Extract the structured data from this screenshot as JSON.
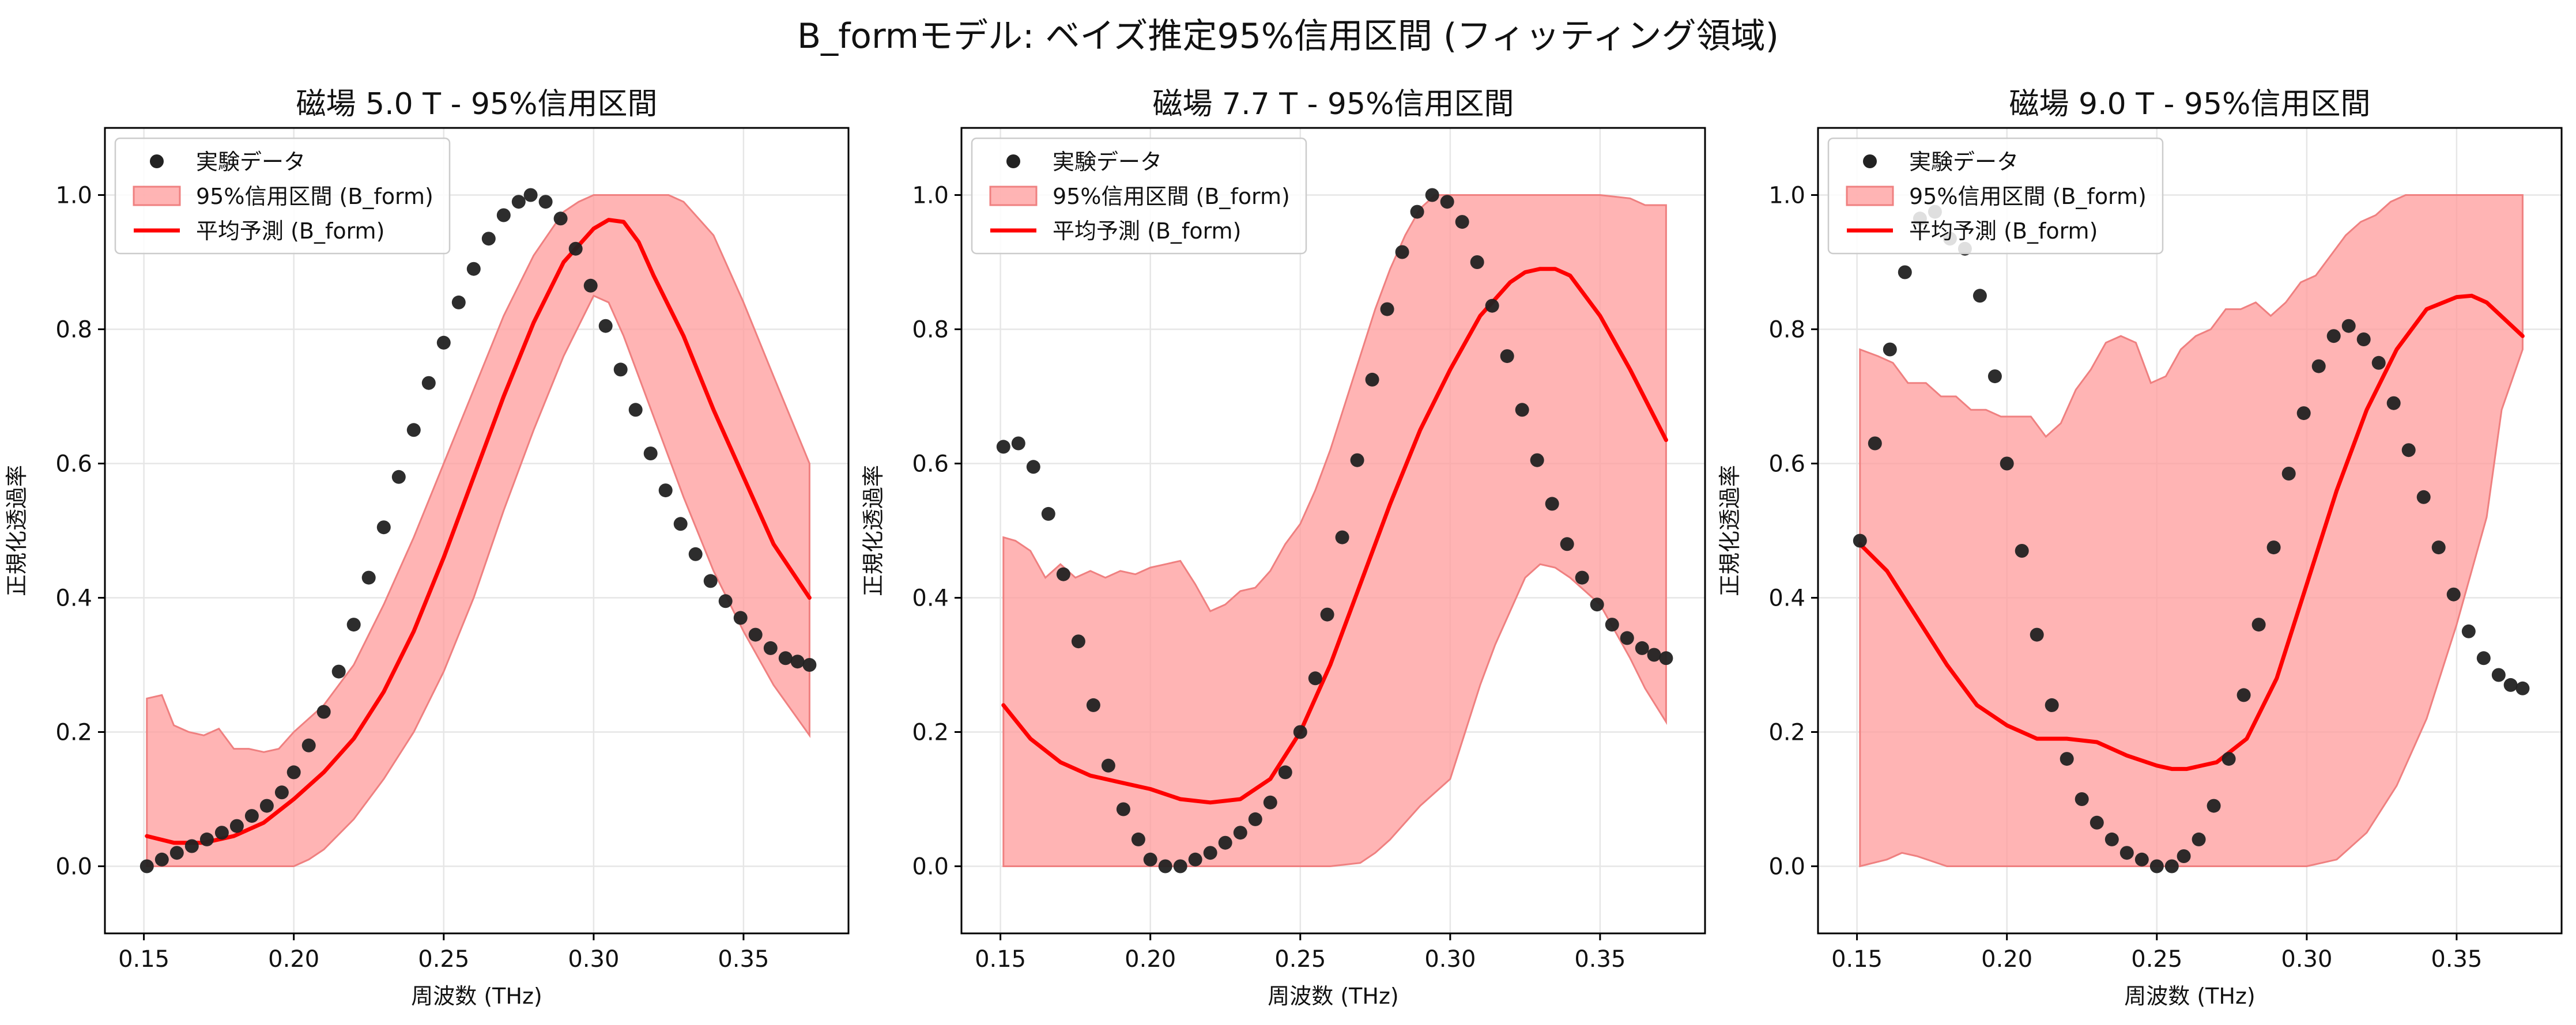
{
  "figure": {
    "suptitle": "B_formモデル: ベイズ推定95%信用区間 (フィッティング領域)"
  },
  "colors": {
    "band_fill": "#ff9b9b",
    "band_edge": "#ef8080",
    "mean_line": "#ff0000",
    "data_points": "#222222",
    "grid": "#e6e6e6"
  },
  "chart_data": [
    {
      "type": "line",
      "title": "磁場 5.0 T - 95%信用区間",
      "xlabel": "周波数 (THz)",
      "ylabel": "正規化透過率",
      "xlim": [
        0.137,
        0.385
      ],
      "ylim": [
        -0.1,
        1.1
      ],
      "xticks": [
        "0.15",
        "0.20",
        "0.25",
        "0.30",
        "0.35"
      ],
      "yticks": [
        "0.0",
        "0.2",
        "0.4",
        "0.6",
        "0.8",
        "1.0"
      ],
      "grid": true,
      "legend": {
        "position": "top-left",
        "entries": [
          "実験データ",
          "95%信用区間 (B_form)",
          "平均予測 (B_form)"
        ]
      },
      "experimental": {
        "x": [
          0.151,
          0.156,
          0.161,
          0.166,
          0.171,
          0.176,
          0.181,
          0.186,
          0.191,
          0.196,
          0.2,
          0.205,
          0.21,
          0.215,
          0.22,
          0.225,
          0.23,
          0.235,
          0.24,
          0.245,
          0.25,
          0.255,
          0.26,
          0.265,
          0.27,
          0.275,
          0.279,
          0.284,
          0.289,
          0.294,
          0.299,
          0.304,
          0.309,
          0.314,
          0.319,
          0.324,
          0.329,
          0.334,
          0.339,
          0.344,
          0.349,
          0.354,
          0.359,
          0.364,
          0.368,
          0.372
        ],
        "y": [
          0.0,
          0.01,
          0.02,
          0.03,
          0.04,
          0.05,
          0.06,
          0.075,
          0.09,
          0.11,
          0.14,
          0.18,
          0.23,
          0.29,
          0.36,
          0.43,
          0.505,
          0.58,
          0.65,
          0.72,
          0.78,
          0.84,
          0.89,
          0.935,
          0.97,
          0.99,
          1.0,
          0.99,
          0.965,
          0.92,
          0.865,
          0.805,
          0.74,
          0.68,
          0.615,
          0.56,
          0.51,
          0.465,
          0.425,
          0.395,
          0.37,
          0.345,
          0.325,
          0.31,
          0.305,
          0.3
        ]
      },
      "mean": {
        "x": [
          0.151,
          0.16,
          0.17,
          0.18,
          0.19,
          0.2,
          0.21,
          0.22,
          0.23,
          0.24,
          0.25,
          0.26,
          0.27,
          0.28,
          0.29,
          0.3,
          0.305,
          0.31,
          0.315,
          0.32,
          0.33,
          0.34,
          0.35,
          0.36,
          0.372
        ],
        "y": [
          0.045,
          0.035,
          0.035,
          0.045,
          0.065,
          0.1,
          0.14,
          0.19,
          0.26,
          0.35,
          0.46,
          0.58,
          0.7,
          0.81,
          0.9,
          0.95,
          0.963,
          0.96,
          0.93,
          0.88,
          0.79,
          0.68,
          0.58,
          0.48,
          0.4
        ]
      },
      "band_upper": {
        "x": [
          0.151,
          0.156,
          0.16,
          0.165,
          0.17,
          0.175,
          0.18,
          0.185,
          0.19,
          0.195,
          0.2,
          0.21,
          0.22,
          0.23,
          0.24,
          0.25,
          0.26,
          0.27,
          0.28,
          0.29,
          0.295,
          0.3,
          0.31,
          0.32,
          0.325,
          0.33,
          0.34,
          0.35,
          0.36,
          0.372
        ],
        "y": [
          0.25,
          0.255,
          0.21,
          0.2,
          0.195,
          0.205,
          0.175,
          0.175,
          0.17,
          0.175,
          0.2,
          0.24,
          0.3,
          0.39,
          0.49,
          0.6,
          0.71,
          0.82,
          0.91,
          0.975,
          0.99,
          1.0,
          1.0,
          1.0,
          1.0,
          0.99,
          0.94,
          0.84,
          0.73,
          0.6
        ]
      },
      "band_lower": {
        "x": [
          0.151,
          0.16,
          0.17,
          0.18,
          0.19,
          0.2,
          0.205,
          0.21,
          0.22,
          0.23,
          0.24,
          0.25,
          0.26,
          0.27,
          0.28,
          0.29,
          0.3,
          0.305,
          0.31,
          0.32,
          0.33,
          0.34,
          0.35,
          0.36,
          0.372
        ],
        "y": [
          0.0,
          0.0,
          0.0,
          0.0,
          0.0,
          0.0,
          0.01,
          0.025,
          0.07,
          0.13,
          0.2,
          0.29,
          0.4,
          0.53,
          0.65,
          0.76,
          0.85,
          0.84,
          0.79,
          0.67,
          0.55,
          0.44,
          0.35,
          0.27,
          0.195
        ]
      }
    },
    {
      "type": "line",
      "title": "磁場 7.7 T - 95%信用区間",
      "xlabel": "周波数 (THz)",
      "ylabel": "正規化透過率",
      "xlim": [
        0.137,
        0.385
      ],
      "ylim": [
        -0.1,
        1.1
      ],
      "xticks": [
        "0.15",
        "0.20",
        "0.25",
        "0.30",
        "0.35"
      ],
      "yticks": [
        "0.0",
        "0.2",
        "0.4",
        "0.6",
        "0.8",
        "1.0"
      ],
      "grid": true,
      "legend": {
        "position": "top-left",
        "entries": [
          "実験データ",
          "95%信用区間 (B_form)",
          "平均予測 (B_form)"
        ]
      },
      "experimental": {
        "x": [
          0.151,
          0.156,
          0.161,
          0.166,
          0.171,
          0.176,
          0.181,
          0.186,
          0.191,
          0.196,
          0.2,
          0.205,
          0.21,
          0.215,
          0.22,
          0.225,
          0.23,
          0.235,
          0.24,
          0.245,
          0.25,
          0.255,
          0.259,
          0.264,
          0.269,
          0.274,
          0.279,
          0.284,
          0.289,
          0.294,
          0.299,
          0.304,
          0.309,
          0.314,
          0.319,
          0.324,
          0.329,
          0.334,
          0.339,
          0.344,
          0.349,
          0.354,
          0.359,
          0.364,
          0.368,
          0.372
        ],
        "y": [
          0.625,
          0.63,
          0.595,
          0.525,
          0.435,
          0.335,
          0.24,
          0.15,
          0.085,
          0.04,
          0.01,
          0.0,
          0.0,
          0.01,
          0.02,
          0.035,
          0.05,
          0.07,
          0.095,
          0.14,
          0.2,
          0.28,
          0.375,
          0.49,
          0.605,
          0.725,
          0.83,
          0.915,
          0.975,
          1.0,
          0.99,
          0.96,
          0.9,
          0.835,
          0.76,
          0.68,
          0.605,
          0.54,
          0.48,
          0.43,
          0.39,
          0.36,
          0.34,
          0.325,
          0.315,
          0.31
        ]
      },
      "mean": {
        "x": [
          0.151,
          0.16,
          0.17,
          0.18,
          0.19,
          0.2,
          0.21,
          0.22,
          0.23,
          0.24,
          0.25,
          0.26,
          0.27,
          0.28,
          0.29,
          0.3,
          0.31,
          0.32,
          0.325,
          0.33,
          0.335,
          0.34,
          0.35,
          0.36,
          0.372
        ],
        "y": [
          0.24,
          0.19,
          0.155,
          0.135,
          0.125,
          0.115,
          0.1,
          0.095,
          0.1,
          0.13,
          0.2,
          0.3,
          0.42,
          0.54,
          0.65,
          0.74,
          0.82,
          0.87,
          0.885,
          0.89,
          0.89,
          0.88,
          0.82,
          0.74,
          0.635
        ]
      },
      "band_upper": {
        "x": [
          0.151,
          0.155,
          0.16,
          0.165,
          0.17,
          0.175,
          0.18,
          0.185,
          0.19,
          0.195,
          0.2,
          0.205,
          0.21,
          0.215,
          0.22,
          0.225,
          0.23,
          0.235,
          0.24,
          0.245,
          0.25,
          0.255,
          0.26,
          0.265,
          0.27,
          0.275,
          0.28,
          0.285,
          0.29,
          0.295,
          0.3,
          0.31,
          0.32,
          0.33,
          0.34,
          0.35,
          0.36,
          0.365,
          0.372
        ],
        "y": [
          0.49,
          0.485,
          0.47,
          0.43,
          0.45,
          0.43,
          0.44,
          0.43,
          0.44,
          0.435,
          0.445,
          0.45,
          0.455,
          0.42,
          0.38,
          0.39,
          0.41,
          0.415,
          0.44,
          0.48,
          0.51,
          0.56,
          0.62,
          0.69,
          0.76,
          0.83,
          0.89,
          0.94,
          0.98,
          1.0,
          1.0,
          1.0,
          1.0,
          1.0,
          1.0,
          1.0,
          0.995,
          0.985,
          0.985
        ]
      },
      "band_lower": {
        "x": [
          0.151,
          0.24,
          0.25,
          0.26,
          0.27,
          0.275,
          0.28,
          0.29,
          0.3,
          0.31,
          0.315,
          0.32,
          0.325,
          0.33,
          0.335,
          0.34,
          0.345,
          0.35,
          0.355,
          0.36,
          0.365,
          0.372
        ],
        "y": [
          0.0,
          0.0,
          0.0,
          0.0,
          0.005,
          0.02,
          0.04,
          0.09,
          0.13,
          0.27,
          0.33,
          0.38,
          0.43,
          0.45,
          0.445,
          0.43,
          0.41,
          0.39,
          0.35,
          0.31,
          0.265,
          0.215
        ]
      }
    },
    {
      "type": "line",
      "title": "磁場 9.0 T - 95%信用区間",
      "xlabel": "周波数 (THz)",
      "ylabel": "正規化透過率",
      "xlim": [
        0.137,
        0.385
      ],
      "ylim": [
        -0.1,
        1.1
      ],
      "xticks": [
        "0.15",
        "0.20",
        "0.25",
        "0.30",
        "0.35"
      ],
      "yticks": [
        "0.0",
        "0.2",
        "0.4",
        "0.6",
        "0.8",
        "1.0"
      ],
      "grid": true,
      "legend": {
        "position": "top-left",
        "entries": [
          "実験データ",
          "95%信用区間 (B_form)",
          "平均予測 (B_form)"
        ]
      },
      "experimental": {
        "x": [
          0.151,
          0.156,
          0.161,
          0.166,
          0.171,
          0.176,
          0.181,
          0.186,
          0.191,
          0.196,
          0.2,
          0.205,
          0.21,
          0.215,
          0.22,
          0.225,
          0.23,
          0.235,
          0.24,
          0.245,
          0.25,
          0.255,
          0.259,
          0.264,
          0.269,
          0.274,
          0.279,
          0.284,
          0.289,
          0.294,
          0.299,
          0.304,
          0.309,
          0.314,
          0.319,
          0.324,
          0.329,
          0.334,
          0.339,
          0.344,
          0.349,
          0.354,
          0.359,
          0.364,
          0.368,
          0.372
        ],
        "y": [
          0.485,
          0.63,
          0.77,
          0.885,
          0.965,
          0.975,
          0.935,
          0.92,
          0.85,
          0.73,
          0.6,
          0.47,
          0.345,
          0.24,
          0.16,
          0.1,
          0.065,
          0.04,
          0.02,
          0.01,
          0.0,
          0.0,
          0.015,
          0.04,
          0.09,
          0.16,
          0.255,
          0.36,
          0.475,
          0.585,
          0.675,
          0.745,
          0.79,
          0.805,
          0.785,
          0.75,
          0.69,
          0.62,
          0.55,
          0.475,
          0.405,
          0.35,
          0.31,
          0.285,
          0.27,
          0.265
        ]
      },
      "mean": {
        "x": [
          0.151,
          0.16,
          0.17,
          0.18,
          0.19,
          0.2,
          0.21,
          0.22,
          0.23,
          0.24,
          0.25,
          0.255,
          0.26,
          0.27,
          0.28,
          0.29,
          0.3,
          0.31,
          0.32,
          0.33,
          0.34,
          0.35,
          0.355,
          0.36,
          0.372
        ],
        "y": [
          0.48,
          0.44,
          0.37,
          0.3,
          0.24,
          0.21,
          0.19,
          0.19,
          0.185,
          0.165,
          0.15,
          0.145,
          0.145,
          0.155,
          0.19,
          0.28,
          0.42,
          0.56,
          0.68,
          0.77,
          0.83,
          0.848,
          0.85,
          0.84,
          0.79
        ]
      },
      "band_upper": {
        "x": [
          0.151,
          0.157,
          0.162,
          0.167,
          0.173,
          0.178,
          0.183,
          0.188,
          0.193,
          0.198,
          0.203,
          0.208,
          0.213,
          0.218,
          0.223,
          0.228,
          0.233,
          0.238,
          0.243,
          0.248,
          0.253,
          0.258,
          0.263,
          0.268,
          0.273,
          0.278,
          0.283,
          0.288,
          0.293,
          0.298,
          0.303,
          0.308,
          0.313,
          0.318,
          0.323,
          0.328,
          0.333,
          0.34,
          0.35,
          0.36,
          0.372
        ],
        "y": [
          0.77,
          0.76,
          0.75,
          0.72,
          0.72,
          0.7,
          0.7,
          0.68,
          0.68,
          0.67,
          0.67,
          0.67,
          0.64,
          0.66,
          0.71,
          0.74,
          0.78,
          0.79,
          0.78,
          0.72,
          0.73,
          0.77,
          0.79,
          0.8,
          0.83,
          0.83,
          0.84,
          0.82,
          0.84,
          0.87,
          0.88,
          0.91,
          0.94,
          0.96,
          0.97,
          0.99,
          1.0,
          1.0,
          1.0,
          1.0,
          1.0
        ]
      },
      "band_lower": {
        "x": [
          0.151,
          0.16,
          0.165,
          0.17,
          0.18,
          0.19,
          0.2,
          0.3,
          0.305,
          0.31,
          0.32,
          0.33,
          0.34,
          0.35,
          0.36,
          0.365,
          0.372
        ],
        "y": [
          0.0,
          0.01,
          0.02,
          0.015,
          0.0,
          0.0,
          0.0,
          0.0,
          0.005,
          0.01,
          0.05,
          0.12,
          0.22,
          0.36,
          0.52,
          0.68,
          0.77
        ]
      }
    }
  ]
}
